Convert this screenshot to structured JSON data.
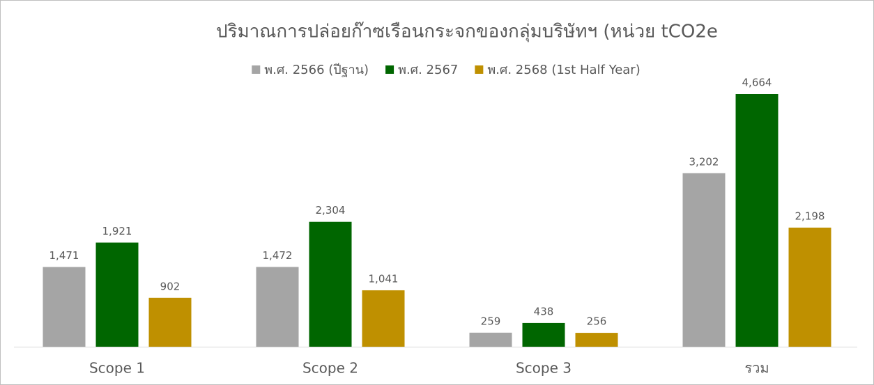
{
  "chart_data": {
    "type": "bar",
    "title": "ปริมาณการปล่อยก๊าซเรือนกระจกของกลุ่มบริษัทฯ (หน่วย tCO2e",
    "categories": [
      "Scope 1",
      "Scope 2",
      "Scope 3",
      "รวม"
    ],
    "series": [
      {
        "name": "พ.ศ. 2566 (ปีฐาน)",
        "color": "#a5a5a5",
        "values": [
          1471,
          1472,
          259,
          3202
        ],
        "value_labels": [
          "1,471",
          "1,472",
          "259",
          "3,202"
        ]
      },
      {
        "name": "พ.ศ. 2567",
        "color": "#006600",
        "values": [
          1921,
          2304,
          438,
          4664
        ],
        "value_labels": [
          "1,921",
          "2,304",
          "438",
          "4,664"
        ]
      },
      {
        "name": "พ.ศ. 2568 (1st Half Year)",
        "color": "#bf9000",
        "values": [
          902,
          1041,
          256,
          2198
        ],
        "value_labels": [
          "902",
          "1,041",
          "256",
          "2,198"
        ]
      }
    ],
    "legend": "top"
  }
}
